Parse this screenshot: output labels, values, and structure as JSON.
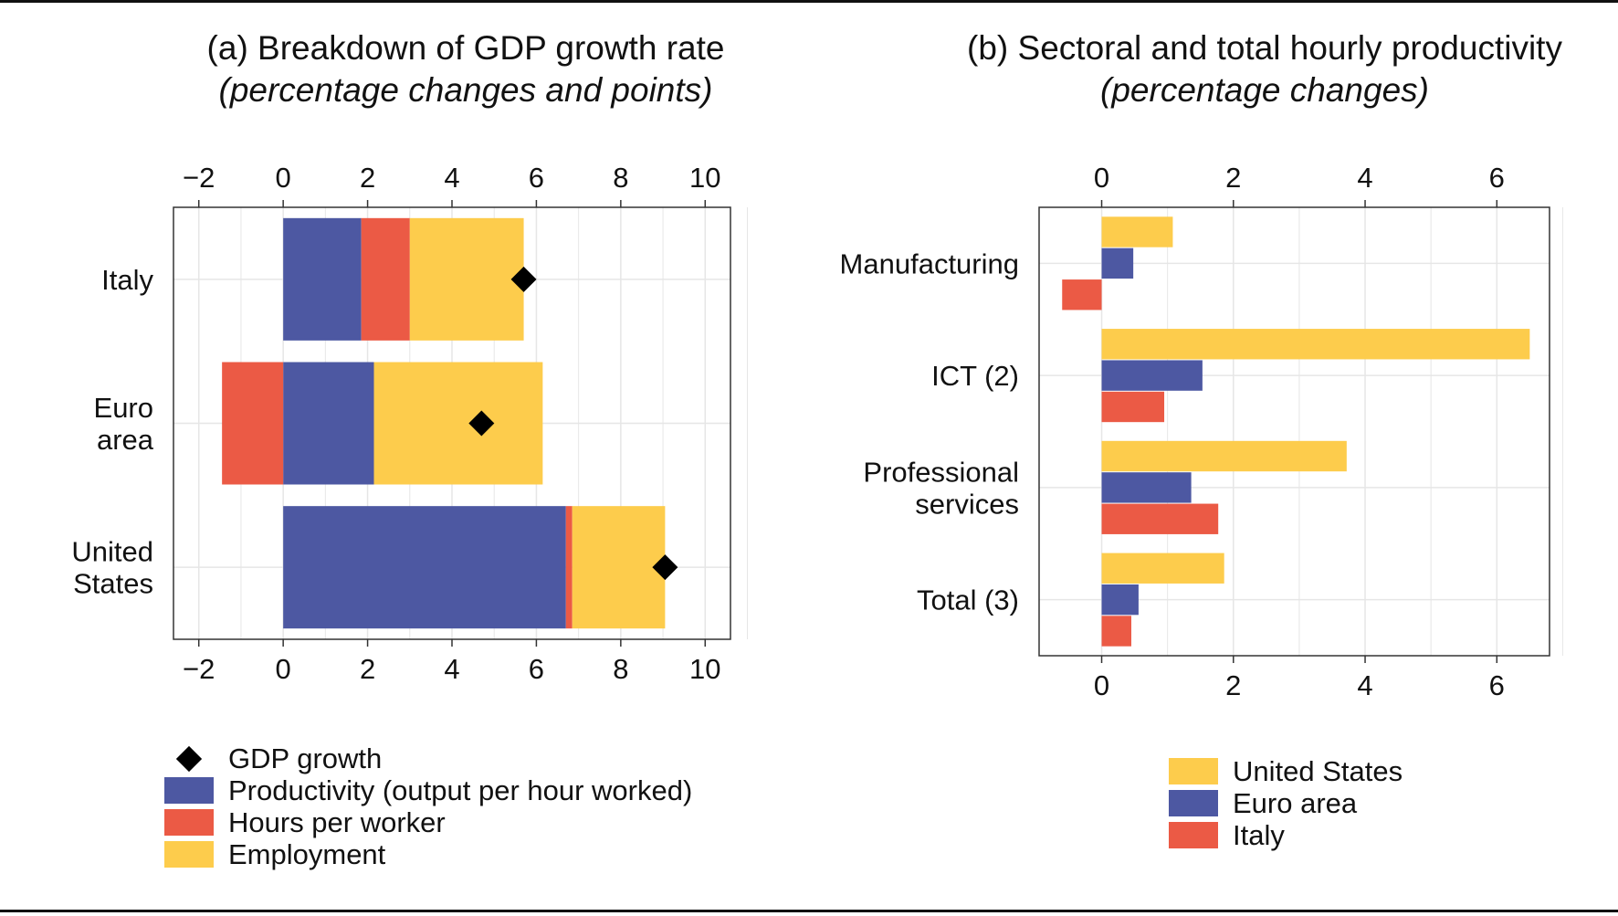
{
  "colors": {
    "productivity": "#4d58a2",
    "hours": "#eb5a45",
    "employment": "#fdcc4c",
    "gdp": "#000000",
    "united_states": "#fdcc4c",
    "euro_area": "#4d58a2",
    "italy": "#eb5a45",
    "grid": "#e6e6e6",
    "frame": "#333333"
  },
  "chart_data": [
    {
      "type": "bar",
      "orientation": "horizontal",
      "stacked": true,
      "title": "(a) Breakdown of GDP growth rate",
      "subtitle": "(percentage changes and points)",
      "categories": [
        "Italy",
        "Euro area",
        "United States"
      ],
      "category_lines": [
        [
          "Italy"
        ],
        [
          "Euro",
          "area"
        ],
        [
          "United",
          "States"
        ]
      ],
      "xlim": [
        -2.6,
        10.6
      ],
      "xticks": [
        -2,
        0,
        2,
        4,
        6,
        8,
        10
      ],
      "xtick_labels": [
        "−2",
        "0",
        "2",
        "4",
        "6",
        "8",
        "10"
      ],
      "grid": true,
      "series": [
        {
          "name": "Productivity (output per hour worked)",
          "key": "productivity",
          "values": [
            1.85,
            2.15,
            6.7
          ]
        },
        {
          "name": "Hours per worker",
          "key": "hours",
          "values": [
            1.15,
            -1.45,
            0.15
          ]
        },
        {
          "name": "Employment",
          "key": "employment",
          "values": [
            2.7,
            4.0,
            2.2
          ]
        }
      ],
      "markers": {
        "name": "GDP growth",
        "key": "gdp",
        "values": [
          5.7,
          4.7,
          9.05
        ]
      },
      "legend": [
        {
          "label": "GDP growth",
          "shape": "diamond",
          "key": "gdp"
        },
        {
          "label": "Productivity (output per hour worked)",
          "shape": "box",
          "key": "productivity"
        },
        {
          "label": "Hours per worker",
          "shape": "box",
          "key": "hours"
        },
        {
          "label": "Employment",
          "shape": "box",
          "key": "employment"
        }
      ],
      "legend_position": "bottom-left"
    },
    {
      "type": "bar",
      "orientation": "horizontal",
      "grouped": true,
      "title": "(b) Sectoral and total hourly productivity",
      "subtitle": "(percentage changes)",
      "categories": [
        "Manufacturing",
        "ICT (2)",
        "Professional services",
        "Total (3)"
      ],
      "category_lines": [
        [
          "Manufacturing"
        ],
        [
          "ICT (2)"
        ],
        [
          "Professional",
          "services"
        ],
        [
          "Total (3)"
        ]
      ],
      "xlim": [
        -0.95,
        6.8
      ],
      "xticks": [
        0,
        2,
        4,
        6
      ],
      "xtick_labels": [
        "0",
        "2",
        "4",
        "6"
      ],
      "grid": true,
      "series": [
        {
          "name": "United States",
          "key": "united_states",
          "values": [
            1.08,
            6.5,
            3.72,
            1.86
          ]
        },
        {
          "name": "Euro area",
          "key": "euro_area",
          "values": [
            0.48,
            1.53,
            1.36,
            0.56
          ]
        },
        {
          "name": "Italy",
          "key": "italy",
          "values": [
            -0.6,
            0.95,
            1.77,
            0.45
          ]
        }
      ],
      "legend_position": "bottom"
    }
  ]
}
